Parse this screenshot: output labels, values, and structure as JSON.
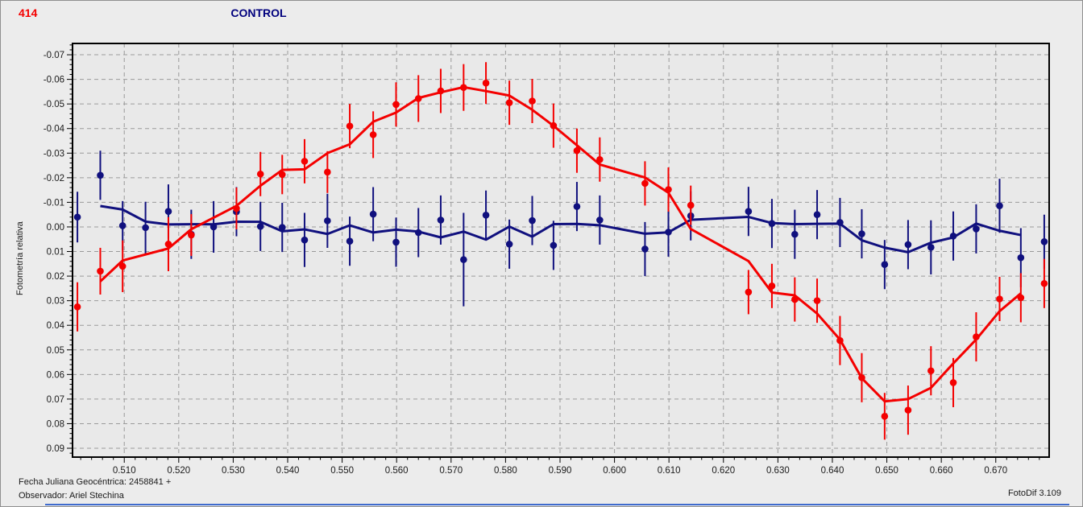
{
  "header": {
    "object_id": "414",
    "object_id_color": "#f40000",
    "title": "CONTROL",
    "title_color": "#00007d"
  },
  "footer": {
    "julian_date": "Fecha Juliana Geocéntrica: 2458841 +",
    "observer": "Observador: Ariel Stechina",
    "app_version": "FotoDif 3.109"
  },
  "chart_data": {
    "type": "scatter",
    "title": "CONTROL",
    "xlabel": "",
    "ylabel": "Fotometría relativa",
    "grid": "dashed",
    "grid_color": "#9a9a9a",
    "plot_bg": "#e9e9e9",
    "frame_color": "#000000",
    "xlim": [
      0.5005,
      0.6798
    ],
    "ylim": [
      -0.0746,
      0.0936
    ],
    "y_inverted_magnitude_style": true,
    "x_ticks": [
      "0.510",
      "0.520",
      "0.530",
      "0.540",
      "0.550",
      "0.560",
      "0.570",
      "0.580",
      "0.590",
      "0.600",
      "0.610",
      "0.620",
      "0.630",
      "0.640",
      "0.650",
      "0.660",
      "0.670"
    ],
    "y_ticks": [
      "-0.07",
      "-0.06",
      "-0.05",
      "-0.04",
      "-0.03",
      "-0.02",
      "-0.01",
      "0.00",
      "0.01",
      "0.02",
      "0.03",
      "0.04",
      "0.05",
      "0.06",
      "0.07",
      "0.08",
      "0.09"
    ],
    "minor_tick_step": 0.002,
    "smoothing": "3-point moving average, drawn from 2nd to 2nd-to-last point",
    "series": [
      {
        "name": "CONTROL",
        "color": "#10107e",
        "points": [
          [
            0.5014,
            -0.004,
            0.0103
          ],
          [
            0.5056,
            -0.021,
            0.01
          ],
          [
            0.5097,
            -0.0005,
            0.01
          ],
          [
            0.5139,
            0.0003,
            0.0105
          ],
          [
            0.5181,
            -0.0063,
            0.011
          ],
          [
            0.5223,
            0.003,
            0.01
          ],
          [
            0.5264,
            0.0,
            0.0105
          ],
          [
            0.5306,
            -0.0062,
            0.01
          ],
          [
            0.535,
            -0.0002,
            0.01
          ],
          [
            0.539,
            0.0002,
            0.01
          ],
          [
            0.5431,
            0.0053,
            0.011
          ],
          [
            0.5473,
            -0.0025,
            0.011
          ],
          [
            0.5514,
            0.0058,
            0.01
          ],
          [
            0.5557,
            -0.0052,
            0.011
          ],
          [
            0.5599,
            0.0062,
            0.01
          ],
          [
            0.564,
            0.0023,
            0.01
          ],
          [
            0.5681,
            -0.0028,
            0.01
          ],
          [
            0.5723,
            0.0133,
            0.019
          ],
          [
            0.5764,
            -0.0048,
            0.01
          ],
          [
            0.5807,
            0.007,
            0.01
          ],
          [
            0.5849,
            -0.0026,
            0.01
          ],
          [
            0.5888,
            0.0075,
            0.01
          ],
          [
            0.5931,
            -0.0083,
            0.01
          ],
          [
            0.5973,
            -0.0028,
            0.01
          ],
          [
            0.6056,
            0.009,
            0.011
          ],
          [
            0.6099,
            0.0021,
            0.01
          ],
          [
            0.614,
            -0.0045,
            0.01
          ],
          [
            0.6246,
            -0.0063,
            0.01
          ],
          [
            0.6289,
            -0.0014,
            0.01
          ],
          [
            0.6331,
            0.003,
            0.01
          ],
          [
            0.6372,
            -0.005,
            0.01
          ],
          [
            0.6414,
            -0.0018,
            0.01
          ],
          [
            0.6454,
            0.0028,
            0.01
          ],
          [
            0.6496,
            0.0153,
            0.01
          ],
          [
            0.6539,
            0.0072,
            0.01
          ],
          [
            0.6581,
            0.0083,
            0.011
          ],
          [
            0.6622,
            0.0037,
            0.01
          ],
          [
            0.6664,
            0.0008,
            0.01
          ],
          [
            0.6707,
            -0.0086,
            0.011
          ],
          [
            0.6746,
            0.0125,
            0.012
          ],
          [
            0.6789,
            0.006,
            0.011
          ]
        ]
      },
      {
        "name": "414",
        "color": "#f40000",
        "points": [
          [
            0.5014,
            0.0325,
            0.01
          ],
          [
            0.5056,
            0.018,
            0.0095
          ],
          [
            0.5097,
            0.016,
            0.0105
          ],
          [
            0.5181,
            0.007,
            0.011
          ],
          [
            0.5223,
            0.0033,
            0.0085
          ],
          [
            0.5306,
            -0.0075,
            0.0085
          ],
          [
            0.535,
            -0.0215,
            0.009
          ],
          [
            0.539,
            -0.0213,
            0.008
          ],
          [
            0.5431,
            -0.0267,
            0.009
          ],
          [
            0.5473,
            -0.0223,
            0.0085
          ],
          [
            0.5514,
            -0.041,
            0.009
          ],
          [
            0.5557,
            -0.0375,
            0.0095
          ],
          [
            0.5599,
            -0.0498,
            0.009
          ],
          [
            0.564,
            -0.0522,
            0.0095
          ],
          [
            0.5681,
            -0.0553,
            0.009
          ],
          [
            0.5723,
            -0.0567,
            0.0095
          ],
          [
            0.5764,
            -0.0585,
            0.0085
          ],
          [
            0.5807,
            -0.0505,
            0.009
          ],
          [
            0.5849,
            -0.0512,
            0.009
          ],
          [
            0.5888,
            -0.0412,
            0.009
          ],
          [
            0.5931,
            -0.031,
            0.009
          ],
          [
            0.5973,
            -0.0274,
            0.009
          ],
          [
            0.6056,
            -0.0177,
            0.009
          ],
          [
            0.6099,
            -0.0152,
            0.009
          ],
          [
            0.614,
            -0.0088,
            0.008
          ],
          [
            0.6246,
            0.0265,
            0.009
          ],
          [
            0.6289,
            0.024,
            0.009
          ],
          [
            0.6331,
            0.0295,
            0.009
          ],
          [
            0.6372,
            0.03,
            0.009
          ],
          [
            0.6414,
            0.0462,
            0.01
          ],
          [
            0.6454,
            0.0613,
            0.01
          ],
          [
            0.6496,
            0.077,
            0.0095
          ],
          [
            0.6539,
            0.0745,
            0.01
          ],
          [
            0.6581,
            0.0585,
            0.01
          ],
          [
            0.6622,
            0.0633,
            0.01
          ],
          [
            0.6664,
            0.0447,
            0.01
          ],
          [
            0.6707,
            0.0293,
            0.009
          ],
          [
            0.6746,
            0.0288,
            0.01
          ],
          [
            0.6789,
            0.023,
            0.01
          ]
        ]
      }
    ]
  }
}
